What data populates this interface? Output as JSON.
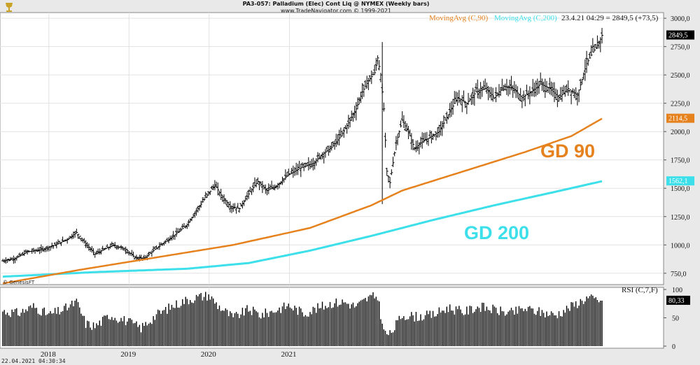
{
  "header": {
    "title": "PA3-057:  Palladium (Elec) Cont Liq @ NYMEX  (Weekly bars)",
    "copyright": "www.TradeNavigator.com © 1999-2021"
  },
  "legend": {
    "ma90_label": "MovingAvg (C,90)",
    "ma200_label": "MovingAvg (C,200)",
    "quote": "23.4.21 04:29 = 2849,5 (+73,5)"
  },
  "colors": {
    "background": "#e9e9e9",
    "bars": "#000000",
    "ma90": "#e6821e",
    "ma200": "#3de0ea",
    "last_price_box": "#000000"
  },
  "source_credit": "© GenesisFT",
  "timestamp": "22.04.2021 04:30:34",
  "chart_data": [
    {
      "type": "ohlc",
      "title": "PA3-057:  Palladium (Elec) Cont Liq @ NYMEX  (Weekly bars)",
      "ylim": [
        650,
        3050
      ],
      "yticks": [
        "750,0",
        "1000,0",
        "1250,0",
        "1500,0",
        "1750,0",
        "2000,0",
        "2250,0",
        "2500,0",
        "2750,0",
        "3000,0"
      ],
      "ytick_values": [
        750,
        1000,
        1250,
        1500,
        1750,
        2000,
        2250,
        2500,
        2750,
        3000
      ],
      "xticks": [
        "2018",
        "2019",
        "2020",
        "2021"
      ],
      "grid": true,
      "last_price_label": "2849,5",
      "ma90_last_label": "2114,5",
      "ma200_last_label": "1562,1",
      "annotations": [
        "GD 90",
        "GD 200"
      ],
      "price_anchors": [
        [
          0,
          860
        ],
        [
          8,
          880
        ],
        [
          16,
          940
        ],
        [
          26,
          960
        ],
        [
          34,
          1000
        ],
        [
          42,
          1050
        ],
        [
          48,
          1110
        ],
        [
          54,
          1010
        ],
        [
          60,
          920
        ],
        [
          66,
          960
        ],
        [
          72,
          1000
        ],
        [
          80,
          960
        ],
        [
          86,
          890
        ],
        [
          92,
          880
        ],
        [
          98,
          950
        ],
        [
          106,
          1030
        ],
        [
          114,
          1110
        ],
        [
          120,
          1180
        ],
        [
          126,
          1300
        ],
        [
          132,
          1420
        ],
        [
          138,
          1530
        ],
        [
          142,
          1440
        ],
        [
          148,
          1340
        ],
        [
          154,
          1320
        ],
        [
          160,
          1450
        ],
        [
          166,
          1560
        ],
        [
          172,
          1480
        ],
        [
          178,
          1520
        ],
        [
          186,
          1620
        ],
        [
          194,
          1680
        ],
        [
          202,
          1720
        ],
        [
          208,
          1800
        ],
        [
          214,
          1860
        ],
        [
          220,
          1960
        ],
        [
          226,
          2100
        ],
        [
          230,
          2200
        ],
        [
          234,
          2350
        ],
        [
          238,
          2450
        ],
        [
          242,
          2520
        ],
        [
          244,
          2650
        ],
        [
          246,
          2500
        ],
        [
          248,
          2200
        ],
        [
          250,
          1650
        ],
        [
          252,
          1550
        ],
        [
          256,
          1900
        ],
        [
          260,
          2100
        ],
        [
          264,
          2000
        ],
        [
          268,
          1850
        ],
        [
          272,
          1900
        ],
        [
          278,
          1950
        ],
        [
          284,
          2000
        ],
        [
          290,
          2150
        ],
        [
          296,
          2300
        ],
        [
          302,
          2250
        ],
        [
          308,
          2350
        ],
        [
          314,
          2380
        ],
        [
          320,
          2300
        ],
        [
          326,
          2400
        ],
        [
          332,
          2380
        ],
        [
          338,
          2300
        ],
        [
          344,
          2350
        ],
        [
          350,
          2420
        ],
        [
          356,
          2380
        ],
        [
          362,
          2300
        ],
        [
          368,
          2380
        ],
        [
          374,
          2320
        ],
        [
          380,
          2600
        ],
        [
          384,
          2700
        ],
        [
          388,
          2780
        ],
        [
          390,
          2849.5
        ]
      ],
      "ma90_anchors": [
        [
          0,
          660
        ],
        [
          50,
          780
        ],
        [
          100,
          890
        ],
        [
          150,
          1000
        ],
        [
          200,
          1150
        ],
        [
          240,
          1350
        ],
        [
          260,
          1480
        ],
        [
          300,
          1650
        ],
        [
          340,
          1820
        ],
        [
          370,
          1960
        ],
        [
          390,
          2114.5
        ]
      ],
      "ma200_anchors": [
        [
          0,
          720
        ],
        [
          60,
          760
        ],
        [
          120,
          790
        ],
        [
          160,
          840
        ],
        [
          200,
          950
        ],
        [
          240,
          1080
        ],
        [
          280,
          1220
        ],
        [
          320,
          1350
        ],
        [
          360,
          1470
        ],
        [
          390,
          1562.1
        ]
      ],
      "x_start": "2017-06-05",
      "weeks": 391
    },
    {
      "type": "bar",
      "title": "RSI (C,7,F)",
      "ylim": [
        0,
        100
      ],
      "yticks": [
        "0",
        "50",
        "100"
      ],
      "last_value_label": "80,33",
      "rsi_anchors": [
        [
          0,
          62
        ],
        [
          10,
          58
        ],
        [
          20,
          70
        ],
        [
          30,
          55
        ],
        [
          40,
          65
        ],
        [
          48,
          78
        ],
        [
          54,
          40
        ],
        [
          60,
          35
        ],
        [
          70,
          55
        ],
        [
          80,
          45
        ],
        [
          90,
          32
        ],
        [
          100,
          55
        ],
        [
          110,
          70
        ],
        [
          118,
          80
        ],
        [
          126,
          86
        ],
        [
          134,
          90
        ],
        [
          140,
          72
        ],
        [
          150,
          50
        ],
        [
          160,
          65
        ],
        [
          168,
          55
        ],
        [
          176,
          62
        ],
        [
          186,
          72
        ],
        [
          196,
          58
        ],
        [
          206,
          68
        ],
        [
          214,
          76
        ],
        [
          222,
          78
        ],
        [
          230,
          70
        ],
        [
          238,
          85
        ],
        [
          244,
          88
        ],
        [
          248,
          25
        ],
        [
          252,
          20
        ],
        [
          260,
          55
        ],
        [
          270,
          52
        ],
        [
          280,
          55
        ],
        [
          290,
          68
        ],
        [
          300,
          60
        ],
        [
          310,
          70
        ],
        [
          320,
          64
        ],
        [
          330,
          58
        ],
        [
          340,
          66
        ],
        [
          350,
          60
        ],
        [
          360,
          55
        ],
        [
          370,
          70
        ],
        [
          380,
          85
        ],
        [
          390,
          80.33
        ]
      ]
    }
  ]
}
